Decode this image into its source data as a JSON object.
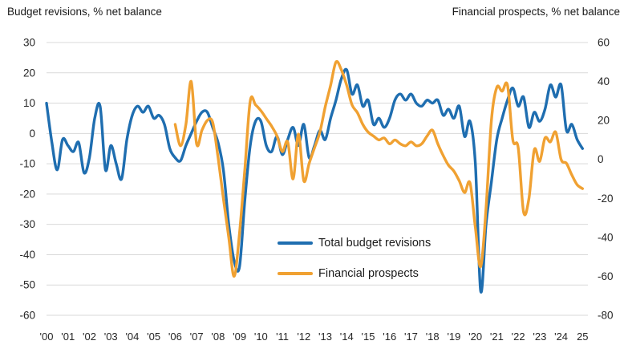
{
  "header": {
    "left_title": "Budget revisions, % net balance",
    "right_title": "Financial prospects, % net balance"
  },
  "legend": [
    {
      "label": "Total budget revisions",
      "color": "#1f6eb0"
    },
    {
      "label": "Financial prospects",
      "color": "#f0a132"
    }
  ],
  "colors": {
    "gridline": "#d9d9d9",
    "tick_text": "#262626",
    "blue_series": "#1f6eb0",
    "orange_series": "#f0a132"
  },
  "chart_data": {
    "type": "line",
    "title": "",
    "grid": true,
    "legend_position": "center-bottom",
    "x_axis": {
      "min": 2000,
      "max": 2025.25,
      "tick_years": [
        2000,
        2001,
        2002,
        2003,
        2004,
        2005,
        2006,
        2007,
        2008,
        2009,
        2010,
        2011,
        2012,
        2013,
        2014,
        2015,
        2016,
        2017,
        2018,
        2019,
        2020,
        2021,
        2022,
        2023,
        2024,
        2025
      ],
      "labels": [
        "'00",
        "'01",
        "'02",
        "'03",
        "'04",
        "'05",
        "'06",
        "'07",
        "'08",
        "'09",
        "'10",
        "'11",
        "'12",
        "'13",
        "'14",
        "'15",
        "'16",
        "'17",
        "'18",
        "'19",
        "'20",
        "'21",
        "'22",
        "'23",
        "'24",
        "25"
      ]
    },
    "left_axis": {
      "title": "Budget revisions, % net balance",
      "min": -60,
      "max": 30,
      "ticks": [
        30,
        20,
        10,
        0,
        -10,
        -20,
        -30,
        -40,
        -50,
        -60
      ]
    },
    "right_axis": {
      "title": "Financial prospects, % net balance",
      "min": -80,
      "max": 60,
      "ticks": [
        60,
        40,
        20,
        0,
        -20,
        -40,
        -60,
        -80
      ]
    },
    "series": [
      {
        "name": "Total budget revisions",
        "axis": "left",
        "color": "#1f6eb0",
        "start_year": 2000,
        "interval_years": 0.25,
        "values": [
          10,
          -3,
          -12,
          -2,
          -4,
          -6,
          -3,
          -13,
          -8,
          5,
          9,
          -12,
          -4,
          -10,
          -15,
          -2,
          6,
          9,
          7,
          9,
          5,
          6,
          3,
          -5,
          -8,
          -9,
          -4,
          0,
          4,
          7,
          7,
          2,
          -3,
          -12,
          -30,
          -42,
          -44,
          -22,
          -4,
          4,
          4,
          -4,
          -6,
          -1,
          -7,
          -2,
          2,
          -4,
          3,
          -8,
          -4,
          1,
          -2,
          5,
          11,
          18,
          21,
          13,
          16,
          9,
          11,
          3,
          5,
          2,
          5,
          11,
          13,
          11,
          13,
          10,
          9,
          11,
          10,
          11,
          6,
          8,
          5,
          9,
          -1,
          4,
          -10,
          -52,
          -30,
          -16,
          -2,
          5,
          11,
          15,
          9,
          12,
          2,
          7,
          4,
          8,
          16,
          12,
          16,
          1,
          3,
          -2,
          -5
        ]
      },
      {
        "name": "Financial prospects",
        "axis": "right",
        "color": "#f0a132",
        "start_year": 2006,
        "interval_years": 0.25,
        "values": [
          18,
          7,
          18,
          40,
          8,
          15,
          20,
          19,
          1,
          -20,
          -40,
          -60,
          -38,
          -5,
          30,
          28,
          25,
          21,
          17,
          12,
          4,
          9,
          -10,
          13,
          -11,
          -2,
          6,
          14,
          27,
          38,
          50,
          46,
          38,
          28,
          24,
          18,
          14,
          12,
          10,
          11,
          8,
          10,
          8,
          7,
          9,
          7,
          8,
          12,
          15,
          8,
          2,
          -3,
          -6,
          -11,
          -17,
          -12,
          -35,
          -55,
          -25,
          20,
          37,
          35,
          38,
          10,
          6,
          -27,
          -20,
          5,
          -1,
          11,
          9,
          14,
          0,
          -2,
          -8,
          -13,
          -15
        ]
      }
    ]
  }
}
